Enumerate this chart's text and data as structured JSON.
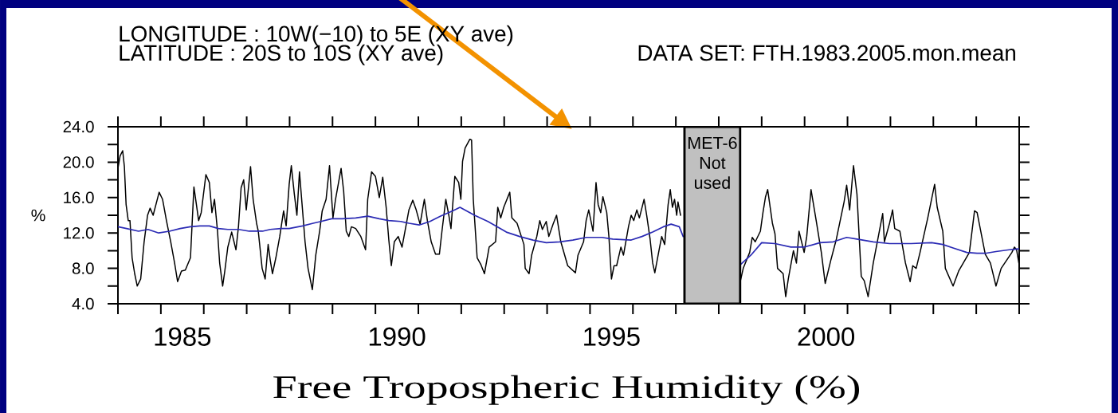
{
  "chart_data": {
    "type": "line",
    "title": "Free Tropospheric Humidity (%)",
    "ylabel": "%",
    "annotations": [
      "LONGITUDE : 10W(−10) to 5E (XY ave)",
      "LATITUDE : 20S to 10S (XY ave)",
      "DATA SET: FTH.1983.2005.mon.mean"
    ],
    "xlim": [
      1984,
      2005
    ],
    "xticks": [
      {
        "value": 1984,
        "label": null
      },
      {
        "value": 1985,
        "label": null
      },
      {
        "value": 1986,
        "label": null
      },
      {
        "value": 1987,
        "label": null
      },
      {
        "value": 1988,
        "label": null
      },
      {
        "value": 1989,
        "label": null
      },
      {
        "value": 1990,
        "label": null
      },
      {
        "value": 1991,
        "label": null
      },
      {
        "value": 1992,
        "label": null
      },
      {
        "value": 1993,
        "label": null
      },
      {
        "value": 1994,
        "label": null
      },
      {
        "value": 1995,
        "label": null
      },
      {
        "value": 1996,
        "label": null
      },
      {
        "value": 1997,
        "label": null
      },
      {
        "value": 1998,
        "label": null
      },
      {
        "value": 1999,
        "label": null
      },
      {
        "value": 2000,
        "label": null
      },
      {
        "value": 2001,
        "label": null
      },
      {
        "value": 2002,
        "label": null
      },
      {
        "value": 2003,
        "label": null
      },
      {
        "value": 2004,
        "label": null
      },
      {
        "value": 2005,
        "label": null
      },
      {
        "value": 1985.5,
        "label": "1985"
      },
      {
        "value": 1990.5,
        "label": "1990"
      },
      {
        "value": 1995.5,
        "label": "1995"
      },
      {
        "value": 2000.5,
        "label": "2000"
      }
    ],
    "ylim": [
      4,
      24
    ],
    "yticks": [
      {
        "value": 4,
        "label": "4.0"
      },
      {
        "value": 6,
        "label": null
      },
      {
        "value": 8,
        "label": "8.0"
      },
      {
        "value": 10,
        "label": null
      },
      {
        "value": 12,
        "label": "12.0"
      },
      {
        "value": 14,
        "label": null
      },
      {
        "value": 16,
        "label": "16.0"
      },
      {
        "value": 18,
        "label": null
      },
      {
        "value": 20,
        "label": "20.0"
      },
      {
        "value": 22,
        "label": null
      },
      {
        "value": 24,
        "label": "24.0"
      }
    ],
    "line_style": "solid",
    "series": [
      {
        "color": "#000000",
        "x": [
          1984.0,
          1984.05,
          1984.11,
          1984.15,
          1984.19,
          1984.24,
          1984.28,
          1984.33,
          1984.39,
          1984.45,
          1984.53,
          1984.61,
          1984.69,
          1984.75,
          1984.82,
          1984.96,
          1985.04,
          1985.13,
          1985.23,
          1985.32,
          1985.39,
          1985.48,
          1985.57,
          1985.69,
          1985.77,
          1985.82,
          1985.88,
          1985.94,
          1986.05,
          1986.13,
          1986.19,
          1986.25,
          1986.32,
          1986.37,
          1986.44,
          1986.49,
          1986.56,
          1986.65,
          1986.75,
          1986.81,
          1986.87,
          1986.93,
          1986.99,
          1987.09,
          1987.15,
          1987.23,
          1987.27,
          1987.36,
          1987.43,
          1987.5,
          1987.55,
          1987.6,
          1987.68,
          1987.77,
          1987.86,
          1987.92,
          1987.99,
          1988.04,
          1988.11,
          1988.17,
          1988.23,
          1988.36,
          1988.43,
          1988.53,
          1988.61,
          1988.7,
          1988.76,
          1988.85,
          1988.93,
          1989.01,
          1989.07,
          1989.2,
          1989.26,
          1989.32,
          1989.38,
          1989.44,
          1989.54,
          1989.66,
          1989.77,
          1989.82,
          1989.91,
          1990.0,
          1990.09,
          1990.17,
          1990.25,
          1990.31,
          1990.37,
          1990.44,
          1990.53,
          1990.62,
          1990.78,
          1990.87,
          1990.95,
          1991.04,
          1991.14,
          1991.21,
          1991.3,
          1991.4,
          1991.49,
          1991.55,
          1991.64,
          1991.71,
          1991.76,
          1991.85,
          1991.94,
          1991.99,
          1992.03,
          1992.09,
          1992.2,
          1992.24,
          1992.28,
          1992.37,
          1992.46,
          1992.54,
          1992.65,
          1992.8,
          1992.85,
          1992.92,
          1992.99,
          1993.13,
          1993.18,
          1993.3,
          1993.46,
          1993.49,
          1993.58,
          1993.64,
          1993.76,
          1993.83,
          1993.89,
          1993.98,
          1994.04,
          1994.14,
          1994.22,
          1994.32,
          1994.48,
          1994.66,
          1994.72,
          1994.85,
          1994.91,
          1994.97,
          1995.07,
          1995.14,
          1995.19,
          1995.25,
          1995.3,
          1995.39,
          1995.44,
          1995.5,
          1995.56,
          1995.62,
          1995.72,
          1995.78,
          1995.9,
          1995.96,
          1996.02,
          1996.09,
          1996.15,
          1996.26,
          1996.32,
          1996.4,
          1996.46,
          1996.51,
          1996.61,
          1996.67,
          1996.74,
          1996.82,
          1996.87,
          1996.92,
          1996.97,
          1997.02,
          1997.05,
          1997.11,
          1997.8,
          1998.5,
          1998.57,
          1998.72,
          1998.78,
          1998.85,
          1998.97,
          1999.03,
          1999.09,
          1999.14,
          1999.25,
          1999.31,
          1999.37,
          1999.5,
          1999.56,
          1999.62,
          1999.74,
          1999.81,
          1999.87,
          1999.99,
          2000.05,
          2000.15,
          2000.27,
          2000.39,
          2000.48,
          2000.61,
          2000.74,
          2000.92,
          2000.98,
          2001.05,
          2001.11,
          2001.14,
          2001.22,
          2001.32,
          2001.39,
          2001.48,
          2001.6,
          2001.73,
          2001.82,
          2001.86,
          2001.98,
          2002.05,
          2002.1,
          2002.22,
          2002.35,
          2002.46,
          2002.52,
          2002.6,
          2002.69,
          2002.87,
          2003.03,
          2003.09,
          2003.22,
          2003.28,
          2003.46,
          2003.59,
          2003.84,
          2003.96,
          2004.02,
          2004.21,
          2004.33,
          2004.46,
          2004.58,
          2004.83,
          2004.89,
          2004.94,
          2005.0
        ],
        "values": [
          19.3,
          20.7,
          21.3,
          19.5,
          15.2,
          13.4,
          13.4,
          9.2,
          7.4,
          6.0,
          6.8,
          11.0,
          14.0,
          14.8,
          14.0,
          16.6,
          15.8,
          13.4,
          11.0,
          8.6,
          6.5,
          7.7,
          7.8,
          9.2,
          17.2,
          15.5,
          13.4,
          14.3,
          18.6,
          17.7,
          14.3,
          15.8,
          12.2,
          8.6,
          6.0,
          7.7,
          10.4,
          12.1,
          10.1,
          12.8,
          17.1,
          18.0,
          14.6,
          19.5,
          15.8,
          13.1,
          12.2,
          8.0,
          6.8,
          10.7,
          8.9,
          7.4,
          9.2,
          11.6,
          14.5,
          12.8,
          17.5,
          19.6,
          16.4,
          14.0,
          18.9,
          11.0,
          8.0,
          5.6,
          9.5,
          12.2,
          14.5,
          15.8,
          19.6,
          13.7,
          15.8,
          19.3,
          16.7,
          12.2,
          11.6,
          12.7,
          12.5,
          11.6,
          10.1,
          15.8,
          18.9,
          18.4,
          16.0,
          18.3,
          14.9,
          11.3,
          8.3,
          11.0,
          11.6,
          10.4,
          14.6,
          15.7,
          14.6,
          13.0,
          15.8,
          13.4,
          11.0,
          9.6,
          9.6,
          12.2,
          15.8,
          14.0,
          12.5,
          18.4,
          17.7,
          15.8,
          20.1,
          21.6,
          22.6,
          22.5,
          15.8,
          9.2,
          8.4,
          7.4,
          10.4,
          11.0,
          14.9,
          13.7,
          14.9,
          16.6,
          13.7,
          13.1,
          10.7,
          8.0,
          7.4,
          9.5,
          11.6,
          13.4,
          12.4,
          13.3,
          11.6,
          13.0,
          14.0,
          11.0,
          8.3,
          7.5,
          9.5,
          11.0,
          13.4,
          14.6,
          12.2,
          17.7,
          15.2,
          14.3,
          16.1,
          14.3,
          11.6,
          6.8,
          8.3,
          8.3,
          10.4,
          9.5,
          12.8,
          14.0,
          13.4,
          14.6,
          13.7,
          15.8,
          14.0,
          11.3,
          8.6,
          7.5,
          10.1,
          11.6,
          10.7,
          15.2,
          16.9,
          14.9,
          15.8,
          14.0,
          15.5,
          14.0,
          null,
          6.5,
          8.0,
          9.8,
          11.5,
          11.0,
          12.2,
          14.3,
          16.1,
          16.9,
          13.1,
          11.9,
          8.0,
          7.4,
          4.8,
          6.8,
          10.0,
          8.6,
          12.2,
          9.8,
          11.6,
          16.9,
          13.4,
          9.8,
          6.3,
          8.9,
          11.3,
          15.5,
          17.4,
          14.6,
          18.0,
          19.6,
          16.4,
          7.1,
          6.6,
          4.8,
          8.6,
          11.9,
          14.2,
          11.0,
          13.1,
          14.6,
          12.5,
          12.2,
          8.6,
          6.5,
          8.3,
          8.0,
          9.8,
          13.7,
          17.5,
          14.9,
          12.2,
          8.0,
          6.0,
          7.7,
          9.8,
          14.5,
          14.3,
          9.6,
          8.6,
          6.0,
          8.0,
          9.8,
          10.4,
          10.1,
          8.4
        ]
      },
      {
        "color": "#2a2ab4",
        "x": [
          1984.0,
          1984.2,
          1984.48,
          1984.7,
          1984.95,
          1985.2,
          1985.45,
          1985.69,
          1985.91,
          1986.13,
          1986.34,
          1986.56,
          1986.81,
          1987.06,
          1987.37,
          1987.55,
          1987.8,
          1987.99,
          1988.3,
          1988.55,
          1988.73,
          1988.98,
          1989.23,
          1989.54,
          1989.82,
          1990.09,
          1990.31,
          1990.59,
          1990.78,
          1991.02,
          1991.27,
          1991.52,
          1991.8,
          1991.97,
          1992.31,
          1992.62,
          1992.84,
          1993.05,
          1993.36,
          1993.67,
          1993.98,
          1994.29,
          1994.6,
          1994.91,
          1995.28,
          1995.53,
          1995.96,
          1996.21,
          1996.46,
          1996.71,
          1996.89,
          1997.08,
          1997.17,
          1997.8,
          1998.5,
          1998.75,
          1999.0,
          1999.31,
          1999.68,
          1999.99,
          2000.36,
          2000.67,
          2000.98,
          2001.22,
          2001.6,
          2001.98,
          2002.48,
          2002.96,
          2003.22,
          2003.46,
          2003.78,
          2004.02,
          2004.21,
          2004.46,
          2004.77,
          2005.0
        ],
        "values": [
          12.7,
          12.5,
          12.2,
          12.4,
          12.0,
          12.2,
          12.5,
          12.7,
          12.8,
          12.8,
          12.5,
          12.4,
          12.4,
          12.2,
          12.2,
          12.4,
          12.5,
          12.5,
          12.8,
          13.1,
          13.3,
          13.6,
          13.6,
          13.7,
          13.9,
          13.6,
          13.4,
          13.3,
          13.1,
          12.9,
          13.3,
          13.9,
          14.5,
          14.9,
          14.0,
          13.3,
          12.7,
          12.1,
          11.6,
          11.2,
          10.9,
          11.0,
          11.2,
          11.5,
          11.5,
          11.3,
          11.2,
          11.6,
          12.1,
          12.7,
          13.0,
          12.7,
          11.6,
          null,
          8.4,
          9.5,
          10.9,
          10.8,
          10.4,
          10.4,
          10.9,
          11.0,
          11.5,
          11.3,
          11.0,
          10.8,
          10.8,
          10.9,
          10.7,
          10.3,
          9.8,
          9.7,
          9.7,
          9.9,
          10.1,
          10.2
        ]
      }
    ],
    "bands": [
      {
        "axis": "x",
        "from": 1997.2,
        "to": 1998.5,
        "label": "MET-6 Not used",
        "color": "#c0c0c0"
      }
    ]
  }
}
